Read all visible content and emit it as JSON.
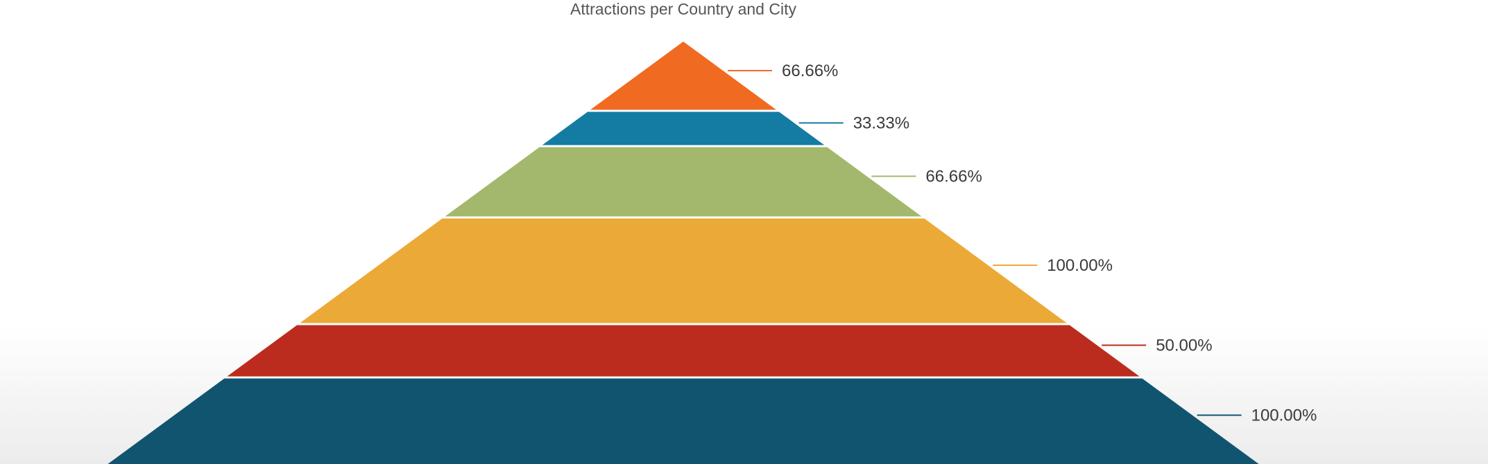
{
  "chart_data": {
    "type": "pyramid",
    "title": "Attractions per Country and City",
    "segments": [
      {
        "label": "66.66%",
        "value": 66.66,
        "color": "#F06A22"
      },
      {
        "label": "33.33%",
        "value": 33.33,
        "color": "#147BA3"
      },
      {
        "label": "66.66%",
        "value": 66.66,
        "color": "#A3B86C"
      },
      {
        "label": "100.00%",
        "value": 100.0,
        "color": "#EBA937"
      },
      {
        "label": "50.00%",
        "value": 50.0,
        "color": "#BB2C1E"
      },
      {
        "label": "100.00%",
        "value": 100.0,
        "color": "#115470"
      }
    ],
    "legend": "none",
    "grid": false
  }
}
